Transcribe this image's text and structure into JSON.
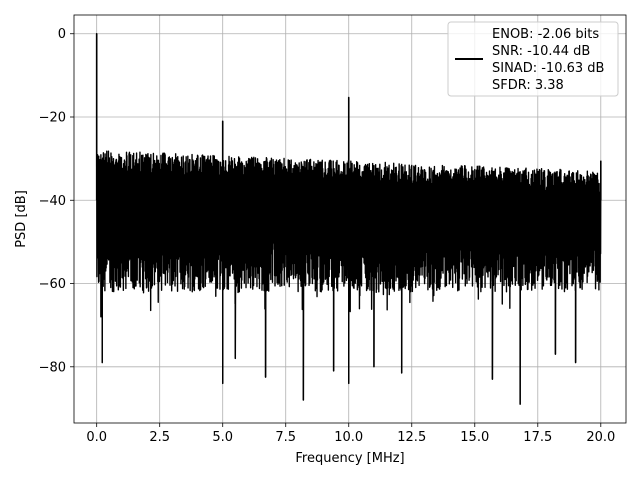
{
  "chart_data": {
    "type": "line",
    "xlabel": "Frequency [MHz]",
    "ylabel": "PSD [dB]",
    "xlim": [
      -0.9,
      21.0
    ],
    "ylim": [
      -93.5,
      4.5
    ],
    "xticks": [
      0.0,
      2.5,
      5.0,
      7.5,
      10.0,
      12.5,
      15.0,
      17.5,
      20.0
    ],
    "xtick_labels": [
      "0.0",
      "2.5",
      "5.0",
      "7.5",
      "10.0",
      "12.5",
      "15.0",
      "17.5",
      "20.0"
    ],
    "yticks": [
      0,
      -20,
      -40,
      -60,
      -80
    ],
    "ytick_labels": [
      "0",
      "−20",
      "−40",
      "−60",
      "−80"
    ],
    "grid": true,
    "legend_position": "top-right",
    "series": [
      {
        "name": "ENOB: -2.06 bits\nSNR: -10.44 dB\nSINAD: -10.63 dB\nSFDR: 3.38",
        "legend_lines": [
          "ENOB: -2.06 bits",
          "SNR: -10.44 dB",
          "SINAD: -10.63 dB",
          "SFDR: 3.38"
        ],
        "color": "#000000",
        "noise_floor_top_db_start": -28,
        "noise_floor_top_db_end": -33,
        "noise_floor_bottom_db": -62,
        "peaks": [
          {
            "x": 0.0,
            "y": 0.0
          },
          {
            "x": 5.0,
            "y": -21.0
          },
          {
            "x": 10.0,
            "y": -15.3
          },
          {
            "x": 20.0,
            "y": -30.5
          }
        ],
        "dips": [
          {
            "x": 0.17,
            "y": -68.0
          },
          {
            "x": 0.22,
            "y": -79.0
          },
          {
            "x": 5.0,
            "y": -84.0
          },
          {
            "x": 5.5,
            "y": -78.0
          },
          {
            "x": 6.7,
            "y": -82.5
          },
          {
            "x": 8.2,
            "y": -88.0
          },
          {
            "x": 9.4,
            "y": -81.0
          },
          {
            "x": 10.0,
            "y": -84.0
          },
          {
            "x": 11.0,
            "y": -80.0
          },
          {
            "x": 12.1,
            "y": -81.5
          },
          {
            "x": 15.7,
            "y": -83.0
          },
          {
            "x": 16.8,
            "y": -89.0
          },
          {
            "x": 18.2,
            "y": -77.0
          },
          {
            "x": 19.0,
            "y": -79.0
          }
        ]
      }
    ]
  }
}
